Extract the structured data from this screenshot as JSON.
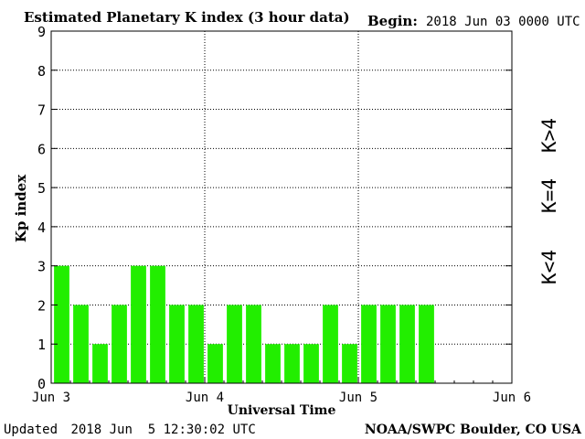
{
  "header": {
    "title": "Estimated Planetary K index (3 hour data)",
    "begin_label": "Begin:",
    "begin_value": "2018 Jun 03 0000 UTC"
  },
  "footer": {
    "updated_label": "Updated",
    "updated_value": "2018 Jun  5 12:30:02 UTC",
    "source": "NOAA/SWPC Boulder, CO USA"
  },
  "legend": {
    "high": {
      "text": "K>4",
      "color": "#ff2a00"
    },
    "equal": {
      "text": "K=4",
      "color": "#ffd700"
    },
    "low": {
      "text": "K<4",
      "color": "#22ee00"
    }
  },
  "chart_data": {
    "type": "bar",
    "xlabel": "Universal Time",
    "ylabel": "Kp index",
    "ylim": [
      0,
      9
    ],
    "yticks": [
      0,
      1,
      2,
      3,
      4,
      5,
      6,
      7,
      8,
      9
    ],
    "xticks": [
      "Jun 3",
      "Jun 4",
      "Jun 5",
      "Jun 6"
    ],
    "slots_per_day": 8,
    "days": 3,
    "grid": "dotted",
    "bar_color": "#22ee00",
    "values": [
      3,
      2,
      1,
      2,
      3,
      3,
      2,
      2,
      1,
      2,
      2,
      1,
      1,
      1,
      2,
      1,
      2,
      2,
      2,
      2
    ]
  }
}
